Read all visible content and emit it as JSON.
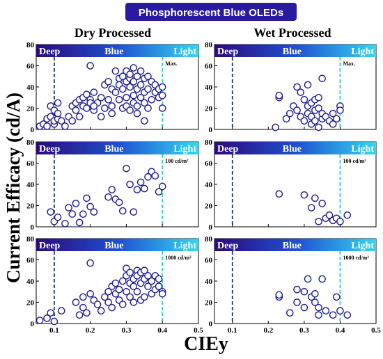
{
  "title": "Phosphorescent Blue OLEDs",
  "colors": {
    "marker": "#1a1a8c",
    "deep_line": "#1f3a5f",
    "light_line": "#3cc8c8",
    "band_left": "#2c0a7a",
    "band_mid": "#1f4fd0",
    "band_right": "#36d6f0",
    "title_bg": "#2a1aa0"
  },
  "column_titles": [
    "Dry Processed",
    "Wet Processed"
  ],
  "ylabel": "Current Efficacy (cd/A)",
  "xlabel": "CIEy",
  "band_labels": {
    "deep": "Deep",
    "blue": "Blue",
    "light": "Light"
  },
  "x_ticks": [
    "0.1",
    "0.2",
    "0.3",
    "0.4",
    "0.5"
  ],
  "y_ticks": [
    "0",
    "20",
    "40",
    "60",
    "80"
  ],
  "chart_data": [
    {
      "type": "scatter",
      "panel": "dry-max",
      "annotation": "Max.",
      "xlim": [
        0.05,
        0.5
      ],
      "ylim": [
        0,
        80
      ],
      "x": [
        0.06,
        0.07,
        0.08,
        0.08,
        0.09,
        0.09,
        0.1,
        0.1,
        0.1,
        0.11,
        0.11,
        0.11,
        0.12,
        0.13,
        0.14,
        0.15,
        0.15,
        0.16,
        0.16,
        0.17,
        0.17,
        0.18,
        0.18,
        0.19,
        0.19,
        0.2,
        0.2,
        0.21,
        0.21,
        0.22,
        0.23,
        0.23,
        0.24,
        0.24,
        0.25,
        0.25,
        0.26,
        0.26,
        0.26,
        0.27,
        0.27,
        0.28,
        0.28,
        0.28,
        0.29,
        0.29,
        0.29,
        0.3,
        0.3,
        0.3,
        0.3,
        0.31,
        0.31,
        0.31,
        0.31,
        0.32,
        0.32,
        0.32,
        0.32,
        0.33,
        0.33,
        0.33,
        0.33,
        0.34,
        0.34,
        0.34,
        0.35,
        0.35,
        0.35,
        0.36,
        0.36,
        0.36,
        0.37,
        0.37,
        0.38,
        0.38,
        0.39,
        0.39,
        0.4,
        0.4,
        0.4,
        0.2,
        0.21,
        0.35
      ],
      "y": [
        3,
        5,
        10,
        3,
        12,
        22,
        5,
        18,
        8,
        10,
        25,
        15,
        8,
        3,
        12,
        22,
        8,
        18,
        25,
        12,
        28,
        22,
        30,
        20,
        33,
        28,
        25,
        35,
        18,
        25,
        12,
        30,
        42,
        20,
        45,
        28,
        38,
        22,
        15,
        55,
        35,
        48,
        28,
        42,
        50,
        38,
        20,
        55,
        30,
        45,
        22,
        40,
        48,
        18,
        52,
        32,
        25,
        45,
        58,
        38,
        50,
        22,
        15,
        42,
        55,
        30,
        48,
        35,
        25,
        20,
        38,
        50,
        45,
        28,
        35,
        42,
        38,
        30,
        32,
        20,
        40,
        60,
        22,
        8
      ]
    },
    {
      "type": "scatter",
      "panel": "wet-max",
      "annotation": "Max.",
      "xlim": [
        0.05,
        0.5
      ],
      "ylim": [
        0,
        80
      ],
      "x": [
        0.22,
        0.23,
        0.25,
        0.26,
        0.27,
        0.28,
        0.28,
        0.29,
        0.29,
        0.3,
        0.3,
        0.31,
        0.31,
        0.31,
        0.32,
        0.32,
        0.32,
        0.33,
        0.33,
        0.33,
        0.34,
        0.34,
        0.34,
        0.35,
        0.35,
        0.35,
        0.36,
        0.37,
        0.38,
        0.38,
        0.39,
        0.4,
        0.4,
        0.23
      ],
      "y": [
        2,
        30,
        10,
        15,
        22,
        40,
        18,
        12,
        35,
        28,
        8,
        22,
        42,
        15,
        5,
        25,
        12,
        18,
        28,
        8,
        2,
        20,
        30,
        10,
        48,
        15,
        12,
        8,
        5,
        15,
        10,
        22,
        18,
        32
      ]
    },
    {
      "type": "scatter",
      "panel": "dry-100",
      "annotation": "100 cd/m²",
      "xlim": [
        0.05,
        0.5
      ],
      "ylim": [
        0,
        80
      ],
      "x": [
        0.09,
        0.1,
        0.11,
        0.13,
        0.14,
        0.15,
        0.16,
        0.17,
        0.18,
        0.19,
        0.2,
        0.21,
        0.25,
        0.26,
        0.27,
        0.28,
        0.29,
        0.3,
        0.31,
        0.32,
        0.33,
        0.34,
        0.35,
        0.36,
        0.37,
        0.38,
        0.39,
        0.4
      ],
      "y": [
        14,
        5,
        9,
        3,
        18,
        12,
        22,
        4,
        12,
        27,
        19,
        14,
        28,
        35,
        26,
        23,
        15,
        55,
        40,
        14,
        35,
        42,
        36,
        47,
        52,
        48,
        33,
        38
      ]
    },
    {
      "type": "scatter",
      "panel": "wet-100",
      "annotation": "100 cd/m²",
      "xlim": [
        0.05,
        0.5
      ],
      "ylim": [
        0,
        80
      ],
      "x": [
        0.23,
        0.3,
        0.32,
        0.33,
        0.34,
        0.35,
        0.36,
        0.37,
        0.38,
        0.39,
        0.4,
        0.42
      ],
      "y": [
        31,
        30,
        18,
        27,
        5,
        22,
        8,
        11,
        6,
        8,
        5,
        11
      ]
    },
    {
      "type": "scatter",
      "panel": "dry-1000",
      "annotation": "1000 cd/m²",
      "xlim": [
        0.05,
        0.5
      ],
      "ylim": [
        0,
        80
      ],
      "x": [
        0.06,
        0.08,
        0.09,
        0.1,
        0.12,
        0.16,
        0.17,
        0.18,
        0.18,
        0.19,
        0.2,
        0.2,
        0.21,
        0.22,
        0.23,
        0.24,
        0.25,
        0.25,
        0.26,
        0.26,
        0.27,
        0.27,
        0.28,
        0.28,
        0.29,
        0.29,
        0.3,
        0.3,
        0.3,
        0.31,
        0.31,
        0.31,
        0.32,
        0.32,
        0.32,
        0.33,
        0.33,
        0.33,
        0.34,
        0.34,
        0.34,
        0.35,
        0.35,
        0.35,
        0.36,
        0.36,
        0.37,
        0.37,
        0.38,
        0.38,
        0.39,
        0.39,
        0.4,
        0.4
      ],
      "y": [
        3,
        5,
        10,
        2,
        12,
        20,
        8,
        15,
        25,
        10,
        28,
        57,
        22,
        18,
        12,
        25,
        30,
        20,
        35,
        15,
        28,
        38,
        22,
        32,
        40,
        18,
        45,
        30,
        52,
        25,
        38,
        48,
        20,
        42,
        35,
        50,
        30,
        45,
        22,
        38,
        48,
        25,
        42,
        50,
        35,
        45,
        28,
        40,
        32,
        45,
        35,
        42,
        30,
        28
      ]
    },
    {
      "type": "scatter",
      "panel": "wet-1000",
      "annotation": "1000 cd/m²",
      "xlim": [
        0.05,
        0.5
      ],
      "ylim": [
        0,
        80
      ],
      "x": [
        0.23,
        0.23,
        0.26,
        0.28,
        0.28,
        0.3,
        0.3,
        0.31,
        0.32,
        0.33,
        0.33,
        0.34,
        0.34,
        0.35,
        0.36,
        0.38,
        0.39,
        0.4,
        0.42
      ],
      "y": [
        25,
        27,
        10,
        20,
        32,
        30,
        15,
        42,
        25,
        28,
        20,
        15,
        8,
        42,
        12,
        8,
        25,
        12,
        8
      ]
    }
  ]
}
